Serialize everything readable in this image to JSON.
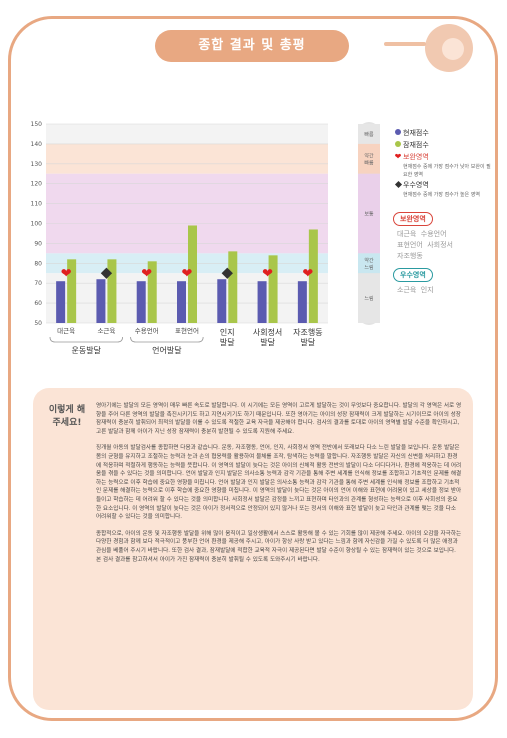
{
  "header": {
    "title": "종합 결과 및 총평"
  },
  "chart_data": {
    "type": "bar",
    "yticks": [
      50,
      60,
      70,
      80,
      90,
      100,
      110,
      120,
      130,
      140,
      150
    ],
    "ylim": [
      50,
      150
    ],
    "grid": true,
    "bands": [
      {
        "label": "빠름",
        "from": 140,
        "to": 150
      },
      {
        "label": "약간 빠름",
        "from": 125,
        "to": 140
      },
      {
        "label": "보통",
        "from": 85,
        "to": 125
      },
      {
        "label": "약간 느림",
        "from": 75,
        "to": 85
      },
      {
        "label": "느림",
        "from": 50,
        "to": 75
      }
    ],
    "categories": [
      "대근육",
      "소근육",
      "수용언어",
      "표현언어",
      "인지",
      "사회정서",
      "자조행동"
    ],
    "groups": [
      {
        "label": "운동발달",
        "first": 0,
        "last": 1
      },
      {
        "label": "언어발달",
        "first": 2,
        "last": 3
      },
      {
        "label": "인지 발달",
        "first": 4,
        "last": 4
      },
      {
        "label": "사회정서 발달",
        "first": 5,
        "last": 5
      },
      {
        "label": "자조행동 발달",
        "first": 6,
        "last": 6
      }
    ],
    "series": [
      {
        "name": "현재점수",
        "color": "#5b5bb0",
        "values": [
          71,
          72,
          71,
          71,
          72,
          71,
          71
        ]
      },
      {
        "name": "잠재점수",
        "color": "#a9c64a",
        "values": [
          82,
          82,
          81,
          99,
          86,
          84,
          97
        ]
      }
    ],
    "markers": [
      "heart",
      "diamond",
      "heart",
      "heart",
      "diamond",
      "heart",
      "heart"
    ],
    "marker_value": 75
  },
  "legend": {
    "current": "현재점수",
    "potential": "잠재점수",
    "support": "보완영역",
    "support_desc": "현재점수 중에 가장 점수가 낮아 보완이 필요한 영역",
    "strength": "우수영역",
    "strength_desc": "현재점수 중에 가장 점수가 높은 영역",
    "colors": {
      "current": "#5b5bb0",
      "potential": "#a9c64a",
      "heart": "#e02020",
      "diamond": "#333333"
    }
  },
  "support_areas": {
    "label": "보완영역",
    "items": [
      "대근육",
      "수용언어",
      "표현언어",
      "사회정서",
      "자조행동"
    ]
  },
  "strength_areas": {
    "label": "우수영역",
    "items": [
      "소근육",
      "인지"
    ]
  },
  "summary": {
    "title": "이렇게 해 주세요!",
    "p1": "영아기에는 발달의 모든 영역이 매우 빠른 속도로 발달합니다. 이 시기에는 모든 영역이 고르게 발달하는 것이 무엇보다 중요합니다. 발달의 각 영역은 서로 영향을 주어 다른 영역의 발달을 촉진시키기도 하고 지연시키기도 하기 때문입니다. 또한 영아기는 아이의 성장 잠재력이 크게 발달하는 시기이므로 아이의 성장 잠재력이 충분히 발휘되어 최적의 발달을 이룰 수 있도록 적절한 교육 자극을 제공해야 합니다. 검사의 결과를 토대로 아이의 영역별 발달 수준을 확인하시고, 고른 발달과 함께 아이가 지닌 성장 잠재력이 충분히 발현될 수 있도록 지원해 주세요.",
    "p2": "징개월 아동의 발달검사를 종합하면 다음과 같습니다. 운동, 자조행동, 언어, 인지, 사회정서 영역 전반에서 또래보다 다소 느린 발달을 보입니다. 운동 발달은 몸의 균형을 유지하고 조절하는 능력과 눈과 손의 협응력을 활용하여 물체를 조작, 탐색하는 능력을 말합니다. 자조행동 발달은 자신의 신변을 처리하고 환경에 적응하며 적절하게 행동하는 능력을 뜻합니다. 이 영역의 발달이 늦다는 것은 아이의 신체적 활동 전반의 발달이 다소 더디다거나, 환경에 적응하는 데 어려움을 겪을 수 있다는 것을 의미합니다. 언어 발달과 인지 발달은 의사소통 능력과 감각 기관을 통해 주변 세계를 인식해 정보를 조합하고 기초적인 문제를 해결하는 능력으로 이후 학습에 중요한 영향을 미칩니다. 언어 발달과 인지 발달은 의사소통 능력과 감각 기관을 통해 주변 세계를 인식해 정보를 조합하고 기초적인 문제를 해결하는 능력으로 이후 학습에 중요한 영향을 미칩니다. 이 영역의 발달이 늦다는 것은 아이의 언어 이해와 표현에 어려움이 있고 세상을 정보 받아들이고 학습하는 데 어려워 할 수 있다는 것을 의미합니다. 사회정서 발달은 감정을 느끼고 표현하며 타인과의 관계를 형성하는 능력으로 이후 사회성의 중요한 요소입니다. 이 영역의 발달이 늦다는 것은 아이가 정서적으로 안정되어 있지 않거나 또는 정서의 이해와 표현 발달이 늦고 타인과 관계를 맺는 것을 다소 어려워할 수 있다는 것을 의미합니다.",
    "p3": "종합적으로, 아이의 운동 및 자조행동 발달을 위해 많이 움직이고 일상생활에서 스스로 활동해 볼 수 있는 기회를 많이 제공해 주세요. 아이의 오감을 자극하는 다양한 경험과 함께 보다 적극적이고 풍부한 언어 환경을 제공해 주시고, 아이가 항상 사랑 받고 있다는 느낌과 함께 자신감을 가질 수 있도록 더 많은 애정과 관심을 베풀어 주시기 바랍니다. 또한 검사 결과, 잠재발달에 적합한 교육적 자극이 제공된다면 발달 수준이 향상될 수 있는 잠재력이 있는 것으로 보입니다. 본 검사 결과를 참고하셔서 아이가 가진 잠재력이 충분히 발휘될 수 있도록 도와주시기 바랍니다."
  }
}
